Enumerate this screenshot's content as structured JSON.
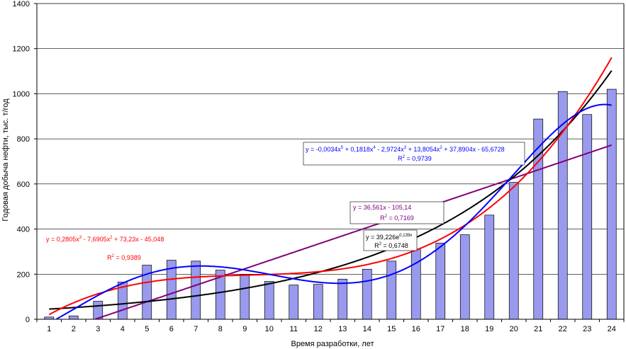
{
  "chart_data": {
    "type": "bar",
    "title": "",
    "xlabel": "Время разработки, лет",
    "ylabel": "Годовая добыча нефти, тыс. т/год",
    "ylim": [
      0,
      1400
    ],
    "xlim": [
      0.5,
      24.5
    ],
    "yticks": [
      "0",
      "200",
      "400",
      "600",
      "800",
      "1000",
      "1200",
      "1400"
    ],
    "categories": [
      "1",
      "2",
      "3",
      "4",
      "5",
      "6",
      "7",
      "8",
      "9",
      "10",
      "11",
      "12",
      "13",
      "14",
      "15",
      "16",
      "17",
      "18",
      "19",
      "20",
      "21",
      "22",
      "23",
      "24"
    ],
    "values": [
      10,
      15,
      80,
      165,
      240,
      262,
      258,
      218,
      198,
      168,
      152,
      155,
      178,
      222,
      258,
      312,
      338,
      375,
      462,
      607,
      888,
      1010,
      908,
      1020
    ],
    "bar_color": "#9999ee",
    "trendlines": [
      {
        "name": "linear",
        "color": "#800080",
        "equation": "y = 36,561x - 105,14",
        "r2_base": "R",
        "r2_sup": "2",
        "r2_value": " = 0,7169",
        "coef": [
          -105.14,
          36.561
        ]
      },
      {
        "name": "exponential",
        "color": "#000000",
        "eq_main": "y = 39,226e",
        "eq_sup": "0,139x",
        "r2_base": "R",
        "r2_sup": "2",
        "r2_value": " = 0,6748",
        "a": 39.226,
        "b": 0.139
      },
      {
        "name": "polynomial-3",
        "color": "#ff0000",
        "eq_parts": [
          "y = 0,2805x",
          "3",
          " - 7,6905x",
          "2",
          " + 73,23x - 45,048"
        ],
        "r2_base": "R",
        "r2_sup": "2",
        "r2_value": " = 0,9389",
        "coef": [
          -45.048,
          73.23,
          -7.6905,
          0.2805
        ]
      },
      {
        "name": "polynomial-5",
        "color": "#0000ff",
        "eq_parts": [
          "y = -0,0034x",
          "5",
          " + 0,1818x",
          "4",
          " - 2,9724x",
          "3",
          " + 13,8054x",
          "2",
          " + 37,8904x - 65,6728"
        ],
        "r2_base": "R",
        "r2_sup": "2",
        "r2_value": " = 0,9739",
        "coef": [
          -65.6728,
          37.8904,
          13.8054,
          -2.9724,
          0.1818,
          -0.0034
        ]
      }
    ]
  }
}
